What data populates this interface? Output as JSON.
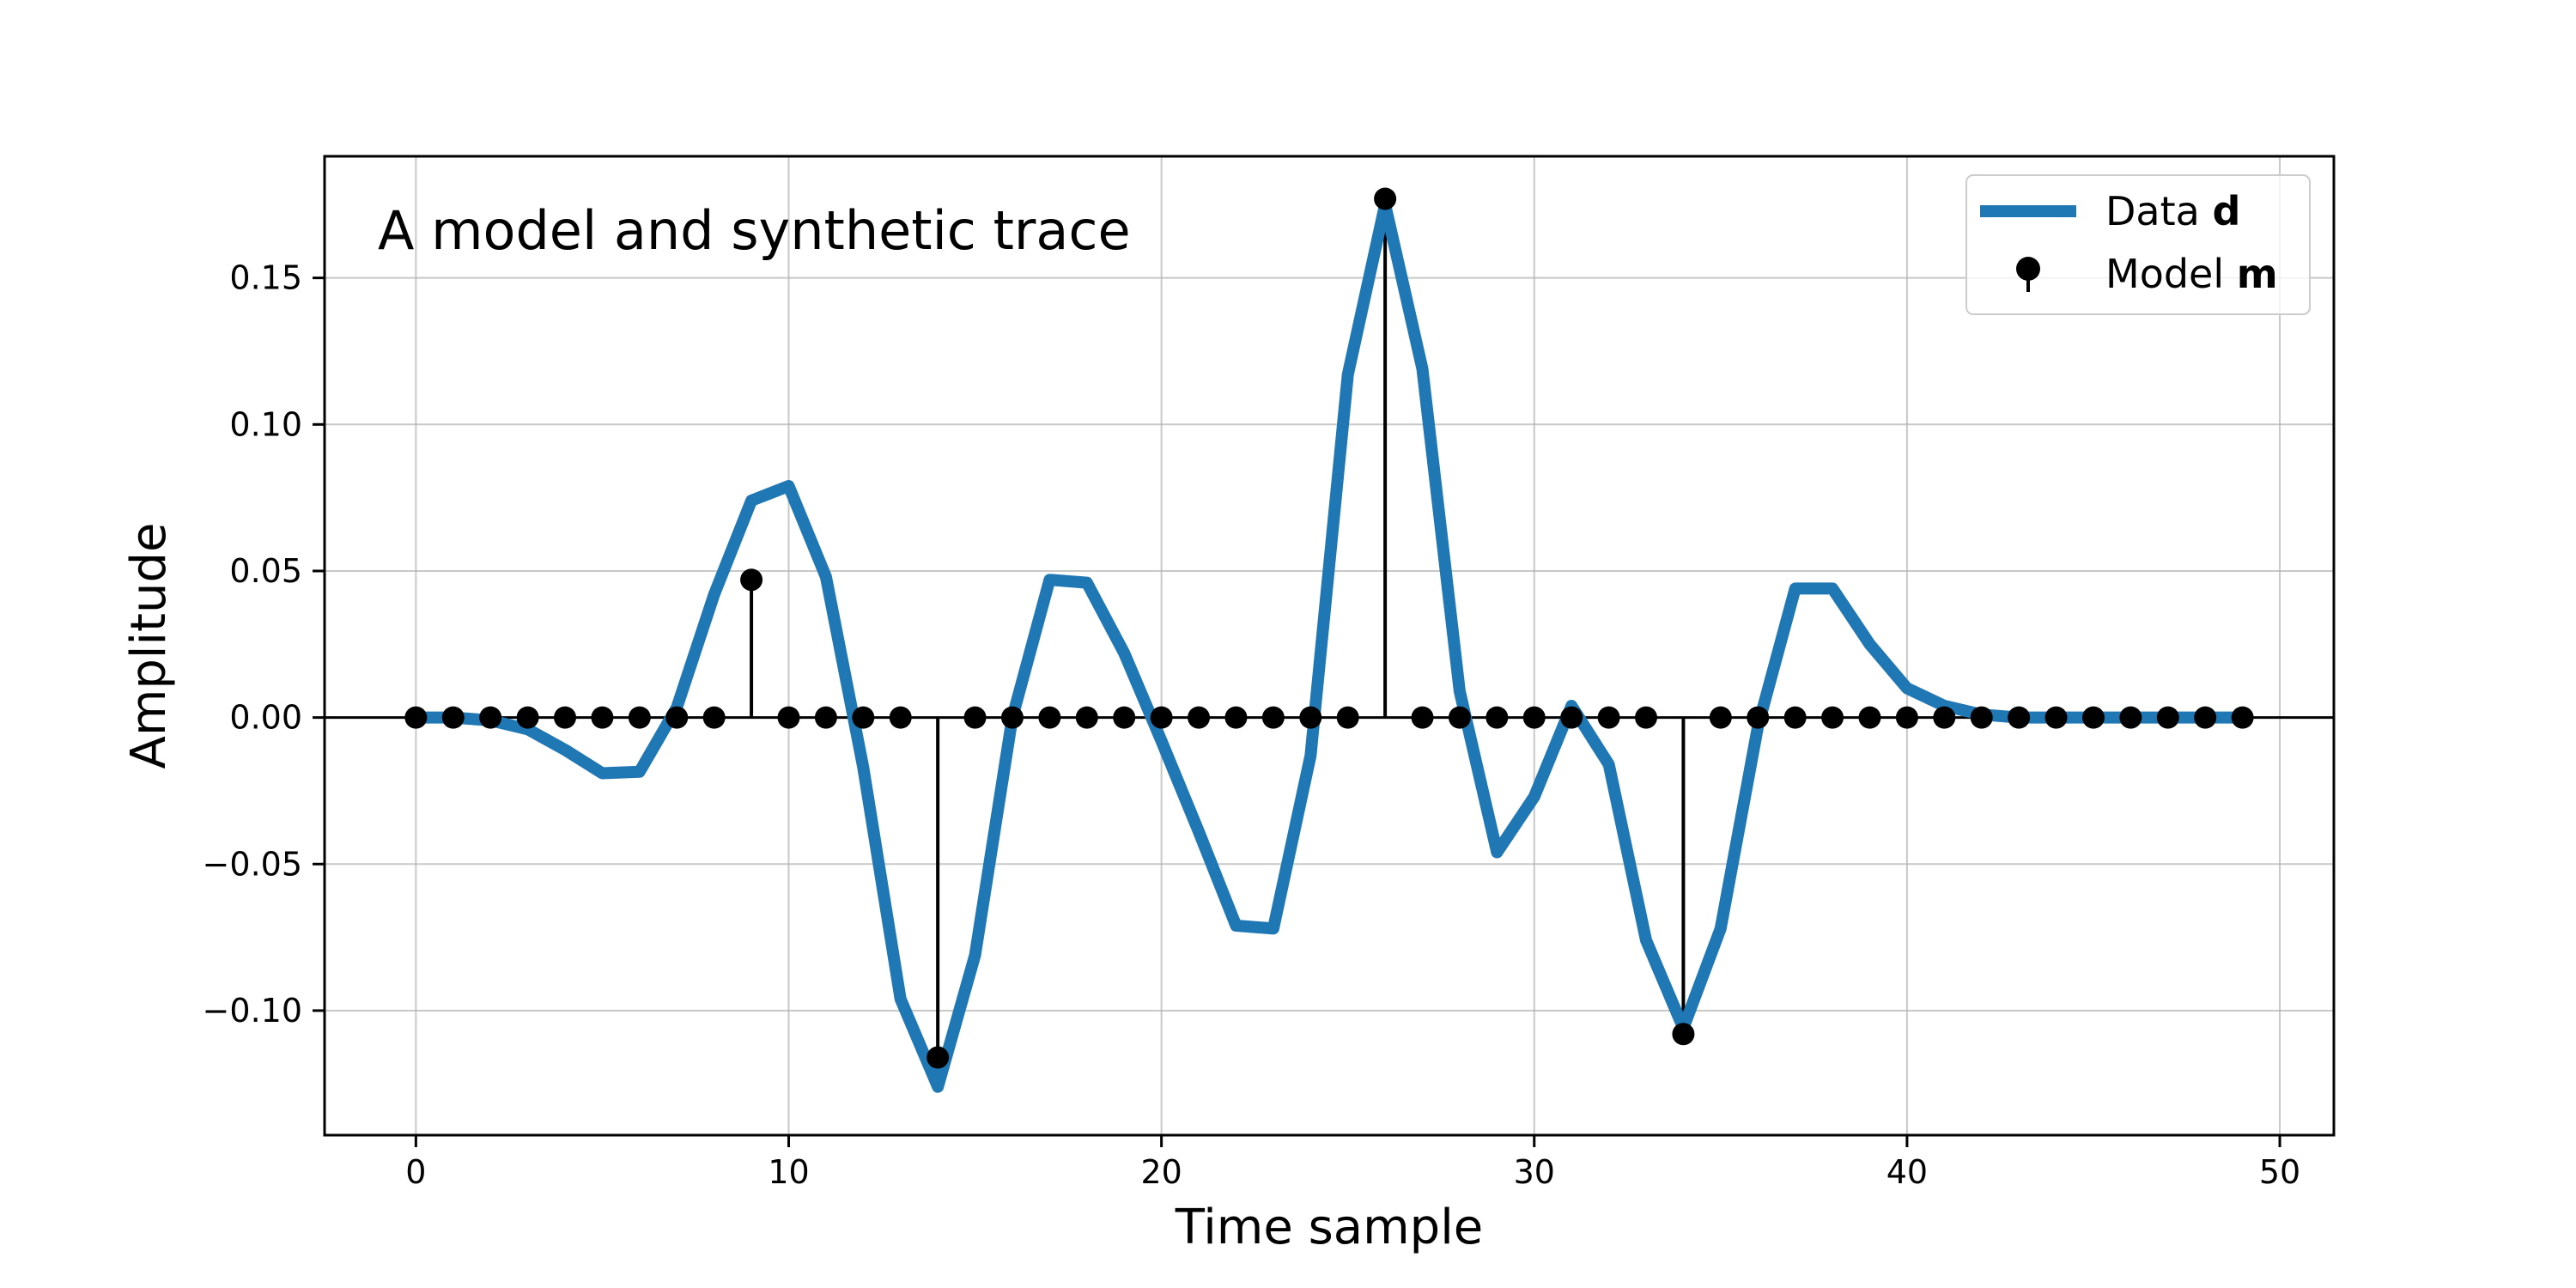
{
  "chart_data": {
    "type": "line",
    "title": "A model and synthetic trace",
    "xlabel": "Time sample",
    "ylabel": "Amplitude",
    "xlim": [
      -2.45,
      51.45
    ],
    "ylim": [
      -0.1425,
      0.1915
    ],
    "xticks": [
      0,
      10,
      20,
      30,
      40,
      50
    ],
    "xtick_labels": [
      "0",
      "10",
      "20",
      "30",
      "40",
      "50"
    ],
    "yticks": [
      -0.1,
      -0.05,
      0.0,
      0.05,
      0.1,
      0.15
    ],
    "ytick_labels": [
      "−0.10",
      "−0.05",
      "0.00",
      "0.05",
      "0.10",
      "0.15"
    ],
    "grid": true,
    "legend_position": "top-right",
    "x": [
      0,
      1,
      2,
      3,
      4,
      5,
      6,
      7,
      8,
      9,
      10,
      11,
      12,
      13,
      14,
      15,
      16,
      17,
      18,
      19,
      20,
      21,
      22,
      23,
      24,
      25,
      26,
      27,
      28,
      29,
      30,
      31,
      32,
      33,
      34,
      35,
      36,
      37,
      38,
      39,
      40,
      41,
      42,
      43,
      44,
      45,
      46,
      47,
      48,
      49
    ],
    "series": [
      {
        "name": "Data d",
        "kind": "line",
        "color": "#1f77b4",
        "values": [
          0.0,
          0.0,
          -0.001,
          -0.004,
          -0.011,
          -0.019,
          -0.0185,
          0.0035,
          0.042,
          0.074,
          0.079,
          0.048,
          -0.017,
          -0.096,
          -0.126,
          -0.081,
          0.0,
          0.047,
          0.046,
          0.022,
          -0.008,
          -0.039,
          -0.071,
          -0.072,
          -0.013,
          0.117,
          0.175,
          0.119,
          0.009,
          -0.046,
          -0.027,
          0.004,
          -0.016,
          -0.076,
          -0.106,
          -0.072,
          -0.003,
          0.044,
          0.044,
          0.025,
          0.01,
          0.004,
          0.001,
          0.0,
          0.0,
          0.0,
          0.0,
          0.0,
          0.0,
          0.0
        ]
      },
      {
        "name": "Model m",
        "kind": "stem",
        "color": "#000000",
        "values": [
          0,
          0,
          0,
          0,
          0,
          0,
          0,
          0,
          0,
          0.047,
          0,
          0,
          0,
          0,
          -0.116,
          0,
          0,
          0,
          0,
          0,
          0,
          0,
          0,
          0,
          0,
          0,
          0.177,
          0,
          0,
          0,
          0,
          0,
          0,
          0,
          -0.108,
          0,
          0,
          0,
          0,
          0,
          0,
          0,
          0,
          0,
          0,
          0,
          0,
          0,
          0,
          0
        ]
      }
    ],
    "legend": [
      {
        "label": "Data ",
        "bold": "d"
      },
      {
        "label": "Model ",
        "bold": "m"
      }
    ]
  }
}
